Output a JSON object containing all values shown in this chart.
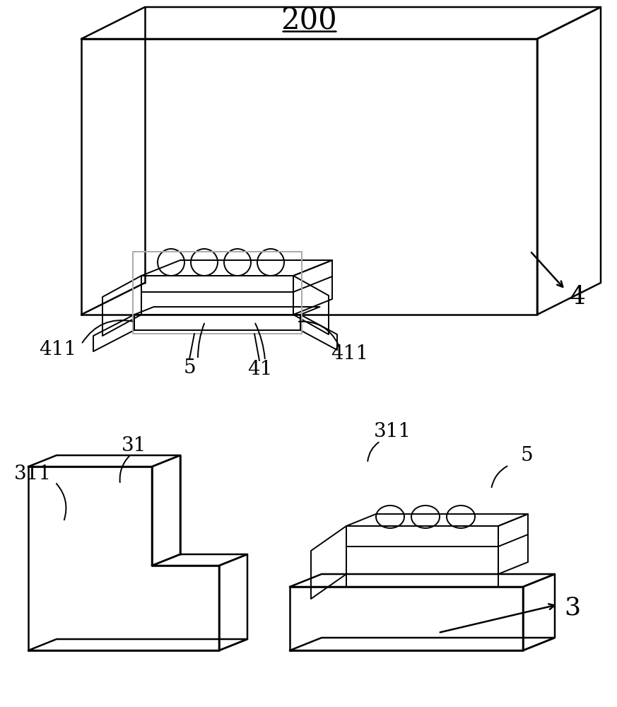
{
  "bg_color": "#ffffff",
  "line_color": "#000000",
  "line_color_gray": "#aaaaaa",
  "fig_width": 8.73,
  "fig_height": 10.0,
  "dpi": 100,
  "label_200": "200",
  "label_4": "4",
  "label_41": "41",
  "label_411_left": "411",
  "label_411_right": "411",
  "label_5_top": "5",
  "label_5_bottom": "5",
  "label_31": "31",
  "label_311_left": "311",
  "label_311_right": "311",
  "label_3": "3",
  "font_size_label": 20,
  "font_size_number": 26
}
